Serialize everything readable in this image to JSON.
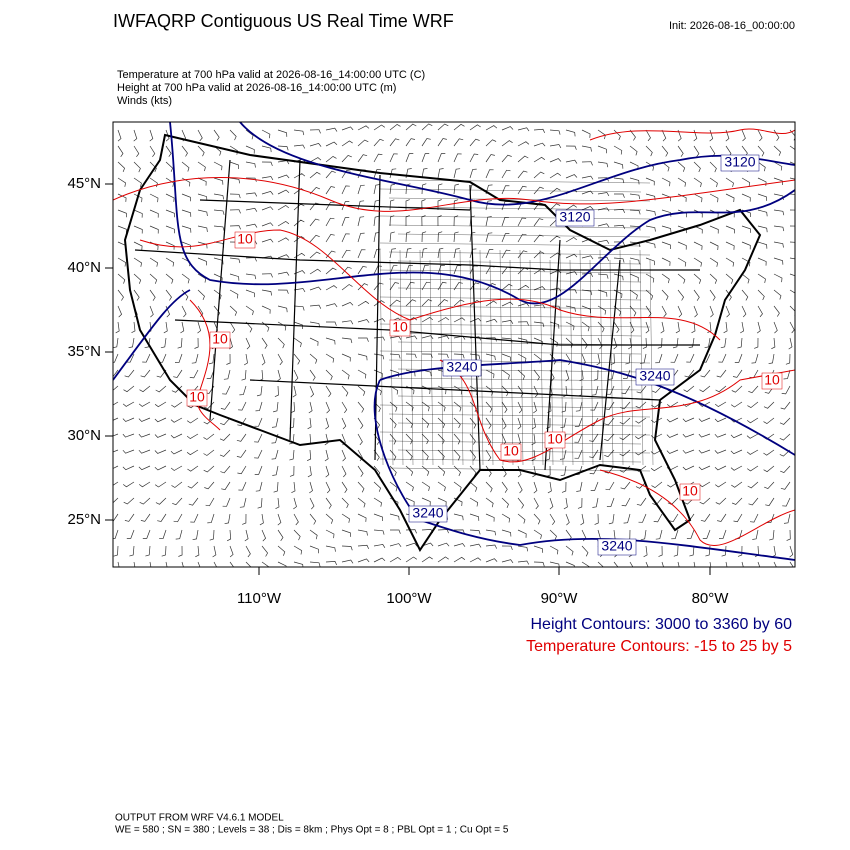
{
  "header": {
    "title": "IWFAQRP Contiguous US Real Time WRF",
    "init": "Init: 2026-08-16_00:00:00"
  },
  "fields": [
    "Temperature at 700 hPa valid at 2026-08-16_14:00:00 UTC   (C)",
    "Height at 700 hPa valid at 2026-08-16_14:00:00 UTC   (m)",
    "Winds   (kts)"
  ],
  "map": {
    "lat_labels": [
      "45°N",
      "40°N",
      "35°N",
      "30°N",
      "25°N"
    ],
    "lon_labels": [
      "110°W",
      "100°W",
      "90°W",
      "80°W"
    ],
    "height_labels": [
      "3120",
      "3120",
      "3240",
      "3240",
      "3240",
      "3240"
    ],
    "temperature_labels": [
      "10",
      "10",
      "10",
      "10",
      "10",
      "10",
      "10",
      "10"
    ]
  },
  "legend": [
    "Height Contours: 3000 to 3360 by 60",
    "Temperature Contours: -15 to 25 by 5"
  ],
  "footer": [
    "OUTPUT FROM WRF V4.6.1 MODEL",
    "WE = 580 ; SN = 380 ; Levels = 38 ; Dis = 8km ; Phys Opt = 8 ; PBL Opt = 1 ; Cu Opt = 5"
  ]
}
